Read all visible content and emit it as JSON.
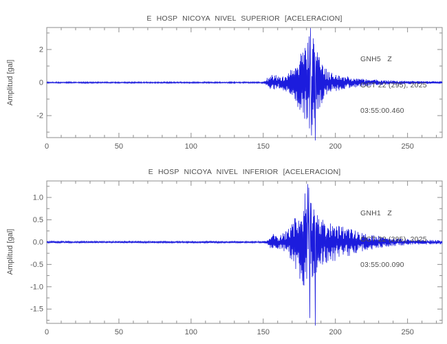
{
  "frame_color": "#8c8c8c",
  "chart_data": [
    {
      "type": "line",
      "title": "E HOSP NICOYA NIVEL SUPERIOR [ACELERACION]",
      "ylabel": "Amplitud [gal]",
      "xlabel": "",
      "station": "GNH5",
      "component": "Z",
      "annotations": [
        "GNH5   Z",
        "OCT 22 (295), 2025",
        "03:55:00.460"
      ],
      "xlim": [
        0,
        274
      ],
      "ylim": [
        -3.33,
        3.33
      ],
      "xticks": [
        0,
        50,
        100,
        150,
        200,
        250
      ],
      "x_minor_step": 10,
      "yticks": [
        -2,
        0,
        2
      ],
      "ytick_labels": [
        "-2",
        "0",
        "2"
      ],
      "y_minor_ticks": [
        -3,
        -1,
        1,
        3
      ],
      "grid": false,
      "legend": "none",
      "line_color": "#1c1cdd",
      "series": [
        {
          "name": "GNH5 Z aceleracion",
          "kind": "seismic-trace",
          "noise_floor": 0.04,
          "peak_positive": 3.3,
          "peak_negative": -3.5,
          "event_onset_x": 152,
          "peak_x": 183,
          "seed": 20251,
          "envelope": [
            [
              0,
              0.04
            ],
            [
              148,
              0.04
            ],
            [
              151,
              0.07
            ],
            [
              152,
              0.28
            ],
            [
              154,
              0.38
            ],
            [
              156,
              0.48
            ],
            [
              158,
              0.52
            ],
            [
              160,
              0.42
            ],
            [
              163,
              0.48
            ],
            [
              166,
              0.55
            ],
            [
              168,
              0.7
            ],
            [
              170,
              0.9
            ],
            [
              172,
              1.15
            ],
            [
              174,
              1.55
            ],
            [
              176,
              1.95
            ],
            [
              178,
              2.25
            ],
            [
              180,
              2.55
            ],
            [
              182,
              3.0
            ],
            [
              183,
              3.25
            ],
            [
              185,
              2.7
            ],
            [
              187,
              2.1
            ],
            [
              189,
              1.55
            ],
            [
              191,
              1.2
            ],
            [
              193,
              0.9
            ],
            [
              196,
              0.68
            ],
            [
              200,
              0.52
            ],
            [
              205,
              0.44
            ],
            [
              210,
              0.34
            ],
            [
              215,
              0.29
            ],
            [
              220,
              0.23
            ],
            [
              230,
              0.17
            ],
            [
              240,
              0.13
            ],
            [
              250,
              0.1
            ],
            [
              260,
              0.085
            ],
            [
              274,
              0.07
            ]
          ],
          "peaks": [
            {
              "x": 182.8,
              "v": 3.3
            },
            {
              "x": 183.5,
              "v": -3.2
            },
            {
              "x": 186.2,
              "v": -3.5
            }
          ]
        }
      ]
    },
    {
      "type": "line",
      "title": "E HOSP NICOYA NIVEL INFERIOR [ACELERACION]",
      "ylabel": "Amplitud [gal]",
      "xlabel": "",
      "station": "GNH1",
      "component": "Z",
      "annotations": [
        "GNH1   Z",
        "OCT 22 (295), 2025",
        "03:55:00.090"
      ],
      "xlim": [
        0,
        274
      ],
      "ylim": [
        -1.82,
        1.37
      ],
      "xticks": [
        0,
        50,
        100,
        150,
        200,
        250
      ],
      "x_minor_step": 10,
      "yticks": [
        -1.5,
        -1.0,
        -0.5,
        0.0,
        0.5,
        1.0
      ],
      "ytick_labels": [
        "-1.5",
        "-1.0",
        "-0.5",
        "0.0",
        "0.5",
        "1.0"
      ],
      "y_minor_ticks": [
        -1.75,
        -1.25,
        -0.75,
        -0.25,
        0.25,
        0.75,
        1.25
      ],
      "grid": false,
      "legend": "none",
      "line_color": "#1c1cdd",
      "series": [
        {
          "name": "GNH1 Z aceleracion",
          "kind": "seismic-trace",
          "noise_floor": 0.02,
          "peak_positive": 1.3,
          "peak_negative": -1.87,
          "event_onset_x": 153,
          "peak_x": 182,
          "seed": 9097,
          "envelope": [
            [
              0,
              0.02
            ],
            [
              150,
              0.02
            ],
            [
              153,
              0.06
            ],
            [
              155,
              0.14
            ],
            [
              157,
              0.19
            ],
            [
              159,
              0.16
            ],
            [
              161,
              0.15
            ],
            [
              163,
              0.19
            ],
            [
              165,
              0.23
            ],
            [
              167,
              0.3
            ],
            [
              170,
              0.42
            ],
            [
              172,
              0.58
            ],
            [
              174,
              0.72
            ],
            [
              176,
              0.88
            ],
            [
              178,
              1.02
            ],
            [
              180,
              1.18
            ],
            [
              181,
              1.28
            ],
            [
              182,
              1.05
            ],
            [
              184,
              0.85
            ],
            [
              186,
              0.72
            ],
            [
              188,
              0.62
            ],
            [
              190,
              0.56
            ],
            [
              193,
              0.5
            ],
            [
              196,
              0.46
            ],
            [
              200,
              0.42
            ],
            [
              205,
              0.36
            ],
            [
              210,
              0.31
            ],
            [
              215,
              0.26
            ],
            [
              220,
              0.21
            ],
            [
              228,
              0.15
            ],
            [
              235,
              0.11
            ],
            [
              245,
              0.08
            ],
            [
              255,
              0.06
            ],
            [
              274,
              0.045
            ]
          ],
          "peaks": [
            {
              "x": 180.8,
              "v": 1.3
            },
            {
              "x": 181.6,
              "v": 1.22
            },
            {
              "x": 182.2,
              "v": -1.7
            },
            {
              "x": 186.0,
              "v": -1.87
            }
          ]
        }
      ]
    }
  ]
}
